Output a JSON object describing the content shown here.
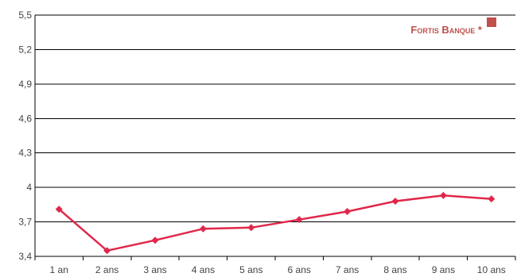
{
  "chart_data": {
    "type": "line",
    "title": "",
    "xlabel": "",
    "ylabel": "",
    "categories": [
      "1 an",
      "2 ans",
      "3 ans",
      "4 ans",
      "5 ans",
      "6 ans",
      "7 ans",
      "8 ans",
      "9 ans",
      "10 ans"
    ],
    "series": [
      {
        "name": "Fortis Banque *",
        "values": [
          3.81,
          3.45,
          3.54,
          3.64,
          3.65,
          3.72,
          3.79,
          3.88,
          3.93,
          3.9
        ],
        "color": "#e0284a"
      }
    ],
    "ylim": [
      3.4,
      5.5
    ],
    "yticks": [
      "3,4",
      "3,7",
      "4",
      "4,3",
      "4,6",
      "4,9",
      "5,2",
      "5,5"
    ],
    "ytick_values": [
      3.4,
      3.7,
      4.0,
      4.3,
      4.6,
      4.9,
      5.2,
      5.5
    ],
    "grid": true,
    "legend_position": "top-right",
    "legend_marker_color": "#c0504d",
    "legend_text_color": "#c0504d"
  }
}
